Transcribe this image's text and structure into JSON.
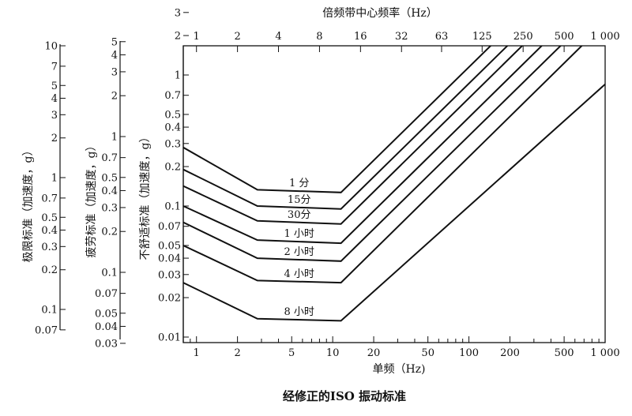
{
  "chart_data": {
    "type": "line",
    "title": "经修正的ISO 振动标准",
    "x_axis_bottom": {
      "label": "单频（Hz)",
      "scale": "log",
      "range": [
        0.8,
        1000
      ],
      "ticks": [
        {
          "value": 1,
          "label": "1"
        },
        {
          "value": 2,
          "label": "2"
        },
        {
          "value": 5,
          "label": "5"
        },
        {
          "value": 10,
          "label": "10"
        },
        {
          "value": 20,
          "label": "20"
        },
        {
          "value": 50,
          "label": "50"
        },
        {
          "value": 100,
          "label": "100"
        },
        {
          "value": 200,
          "label": "200"
        },
        {
          "value": 500,
          "label": "500"
        },
        {
          "value": 1000,
          "label": "1 000"
        }
      ]
    },
    "x_axis_top": {
      "label": "倍频带中心频率（Hz）",
      "scale": "log",
      "ticks": [
        {
          "value": 1,
          "label": "1"
        },
        {
          "value": 2,
          "label": "2"
        },
        {
          "value": 4,
          "label": "4"
        },
        {
          "value": 8,
          "label": "8"
        },
        {
          "value": 16,
          "label": "16"
        },
        {
          "value": 32,
          "label": "32"
        },
        {
          "value": 63,
          "label": "63"
        },
        {
          "value": 125,
          "label": "125"
        },
        {
          "value": 250,
          "label": "250"
        },
        {
          "value": 500,
          "label": "500"
        },
        {
          "value": 1000,
          "label": "1 000"
        }
      ]
    },
    "y_axis_comfort": {
      "label": "不舒适标准（加速度，g）",
      "scale": "log",
      "range": [
        0.01,
        5
      ],
      "ticks": [
        {
          "value": 0.01,
          "label": "0.01"
        },
        {
          "value": 0.02,
          "label": "0.02"
        },
        {
          "value": 0.03,
          "label": "0.03"
        },
        {
          "value": 0.04,
          "label": "0.04"
        },
        {
          "value": 0.05,
          "label": "0.05"
        },
        {
          "value": 0.07,
          "label": "0.07"
        },
        {
          "value": 0.1,
          "label": "0.1"
        },
        {
          "value": 0.2,
          "label": "0.2"
        },
        {
          "value": 0.3,
          "label": "0.3"
        },
        {
          "value": 0.4,
          "label": "0.4"
        },
        {
          "value": 0.5,
          "label": "0.5"
        },
        {
          "value": 0.7,
          "label": "0.7"
        },
        {
          "value": 1,
          "label": "1"
        },
        {
          "value": 2,
          "label": "2"
        },
        {
          "value": 3,
          "label": "3"
        },
        {
          "value": 4,
          "label": "4"
        },
        {
          "value": 5,
          "label": "5"
        }
      ]
    },
    "y_axis_fatigue": {
      "label": "疲劳标准（加速度，g）",
      "scale": "log",
      "range": [
        0.03,
        5
      ],
      "ticks": [
        {
          "value": 0.03,
          "label": "0.03"
        },
        {
          "value": 0.04,
          "label": "0.04"
        },
        {
          "value": 0.05,
          "label": "0.05"
        },
        {
          "value": 0.07,
          "label": "0.07"
        },
        {
          "value": 0.1,
          "label": "0.1"
        },
        {
          "value": 0.2,
          "label": "0.2"
        },
        {
          "value": 0.3,
          "label": "0.3"
        },
        {
          "value": 0.4,
          "label": "0.4"
        },
        {
          "value": 0.5,
          "label": "0.5"
        },
        {
          "value": 0.7,
          "label": "0.7"
        },
        {
          "value": 1,
          "label": "1"
        },
        {
          "value": 2,
          "label": "2"
        },
        {
          "value": 3,
          "label": "3"
        },
        {
          "value": 4,
          "label": "4"
        },
        {
          "value": 5,
          "label": "5"
        }
      ]
    },
    "y_axis_limit": {
      "label": "极限标准（加速度，g）",
      "scale": "log",
      "range": [
        0.06,
        10
      ],
      "ticks": [
        {
          "value": 0.07,
          "label": "0.07"
        },
        {
          "value": 0.1,
          "label": "0.1"
        },
        {
          "value": 0.2,
          "label": "0.2"
        },
        {
          "value": 0.3,
          "label": "0.3"
        },
        {
          "value": 0.4,
          "label": "0.4"
        },
        {
          "value": 0.5,
          "label": "0.5"
        },
        {
          "value": 0.7,
          "label": "0.7"
        },
        {
          "value": 1,
          "label": "1"
        },
        {
          "value": 2,
          "label": "2"
        },
        {
          "value": 3,
          "label": "3"
        },
        {
          "value": 4,
          "label": "4"
        },
        {
          "value": 5,
          "label": "5"
        },
        {
          "value": 7,
          "label": "7"
        },
        {
          "value": 10,
          "label": "10"
        }
      ]
    },
    "series": [
      {
        "name": "1 分",
        "points": [
          [
            0.8,
            0.28
          ],
          [
            2.8,
            0.133
          ],
          [
            11.5,
            0.127
          ],
          [
            1000,
            12
          ]
        ]
      },
      {
        "name": "15分",
        "points": [
          [
            0.8,
            0.19
          ],
          [
            2.8,
            0.1
          ],
          [
            11.5,
            0.095
          ],
          [
            1000,
            9
          ]
        ]
      },
      {
        "name": "30分",
        "points": [
          [
            0.8,
            0.142
          ],
          [
            2.8,
            0.077
          ],
          [
            11.5,
            0.073
          ],
          [
            1000,
            7
          ]
        ]
      },
      {
        "name": "1 小时",
        "points": [
          [
            0.8,
            0.1
          ],
          [
            2.8,
            0.055
          ],
          [
            11.5,
            0.052
          ],
          [
            1000,
            5
          ]
        ]
      },
      {
        "name": "2 小时",
        "points": [
          [
            0.8,
            0.075
          ],
          [
            2.8,
            0.04
          ],
          [
            11.5,
            0.038
          ],
          [
            1000,
            3.6
          ]
        ]
      },
      {
        "name": "4 小时",
        "points": [
          [
            0.8,
            0.05
          ],
          [
            2.8,
            0.027
          ],
          [
            11.5,
            0.026
          ],
          [
            1000,
            2.5
          ]
        ]
      },
      {
        "name": "8 小时",
        "points": [
          [
            0.8,
            0.026
          ],
          [
            2.8,
            0.0138
          ],
          [
            11.5,
            0.0133
          ],
          [
            1000,
            0.85
          ]
        ]
      }
    ]
  }
}
